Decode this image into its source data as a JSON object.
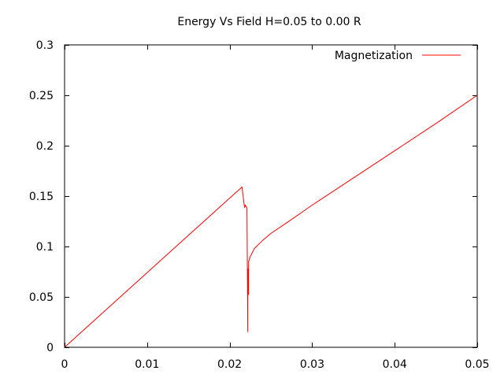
{
  "chart_data": {
    "type": "line",
    "title": "Energy Vs Field H=0.05 to 0.00 R",
    "xlabel": "",
    "ylabel": "",
    "xlim": [
      0,
      0.05
    ],
    "ylim": [
      0,
      0.3
    ],
    "xticks": [
      0,
      0.01,
      0.02,
      0.03,
      0.04,
      0.05
    ],
    "xtick_labels": [
      "0",
      "0.01",
      "0.02",
      "0.03",
      "0.04",
      "0.05"
    ],
    "yticks": [
      0,
      0.05,
      0.1,
      0.15,
      0.2,
      0.25,
      0.3
    ],
    "ytick_labels": [
      "0",
      "0.05",
      "0.1",
      "0.15",
      "0.2",
      "0.25",
      "0.3"
    ],
    "grid": false,
    "legend_position": "top-right",
    "series": [
      {
        "name": "Magnetization",
        "color": "#ff0000",
        "points": [
          [
            0.0,
            0.0
          ],
          [
            0.005,
            0.037
          ],
          [
            0.01,
            0.074
          ],
          [
            0.015,
            0.111
          ],
          [
            0.0215,
            0.159
          ],
          [
            0.0218,
            0.139
          ],
          [
            0.0219,
            0.141
          ],
          [
            0.0221,
            0.138
          ],
          [
            0.0222,
            0.015
          ],
          [
            0.0222,
            0.078
          ],
          [
            0.0223,
            0.052
          ],
          [
            0.0223,
            0.085
          ],
          [
            0.0225,
            0.09
          ],
          [
            0.023,
            0.098
          ],
          [
            0.024,
            0.106
          ],
          [
            0.025,
            0.113
          ],
          [
            0.027,
            0.124
          ],
          [
            0.03,
            0.141
          ],
          [
            0.035,
            0.168
          ],
          [
            0.04,
            0.195
          ],
          [
            0.045,
            0.222
          ],
          [
            0.05,
            0.25
          ]
        ]
      }
    ]
  }
}
